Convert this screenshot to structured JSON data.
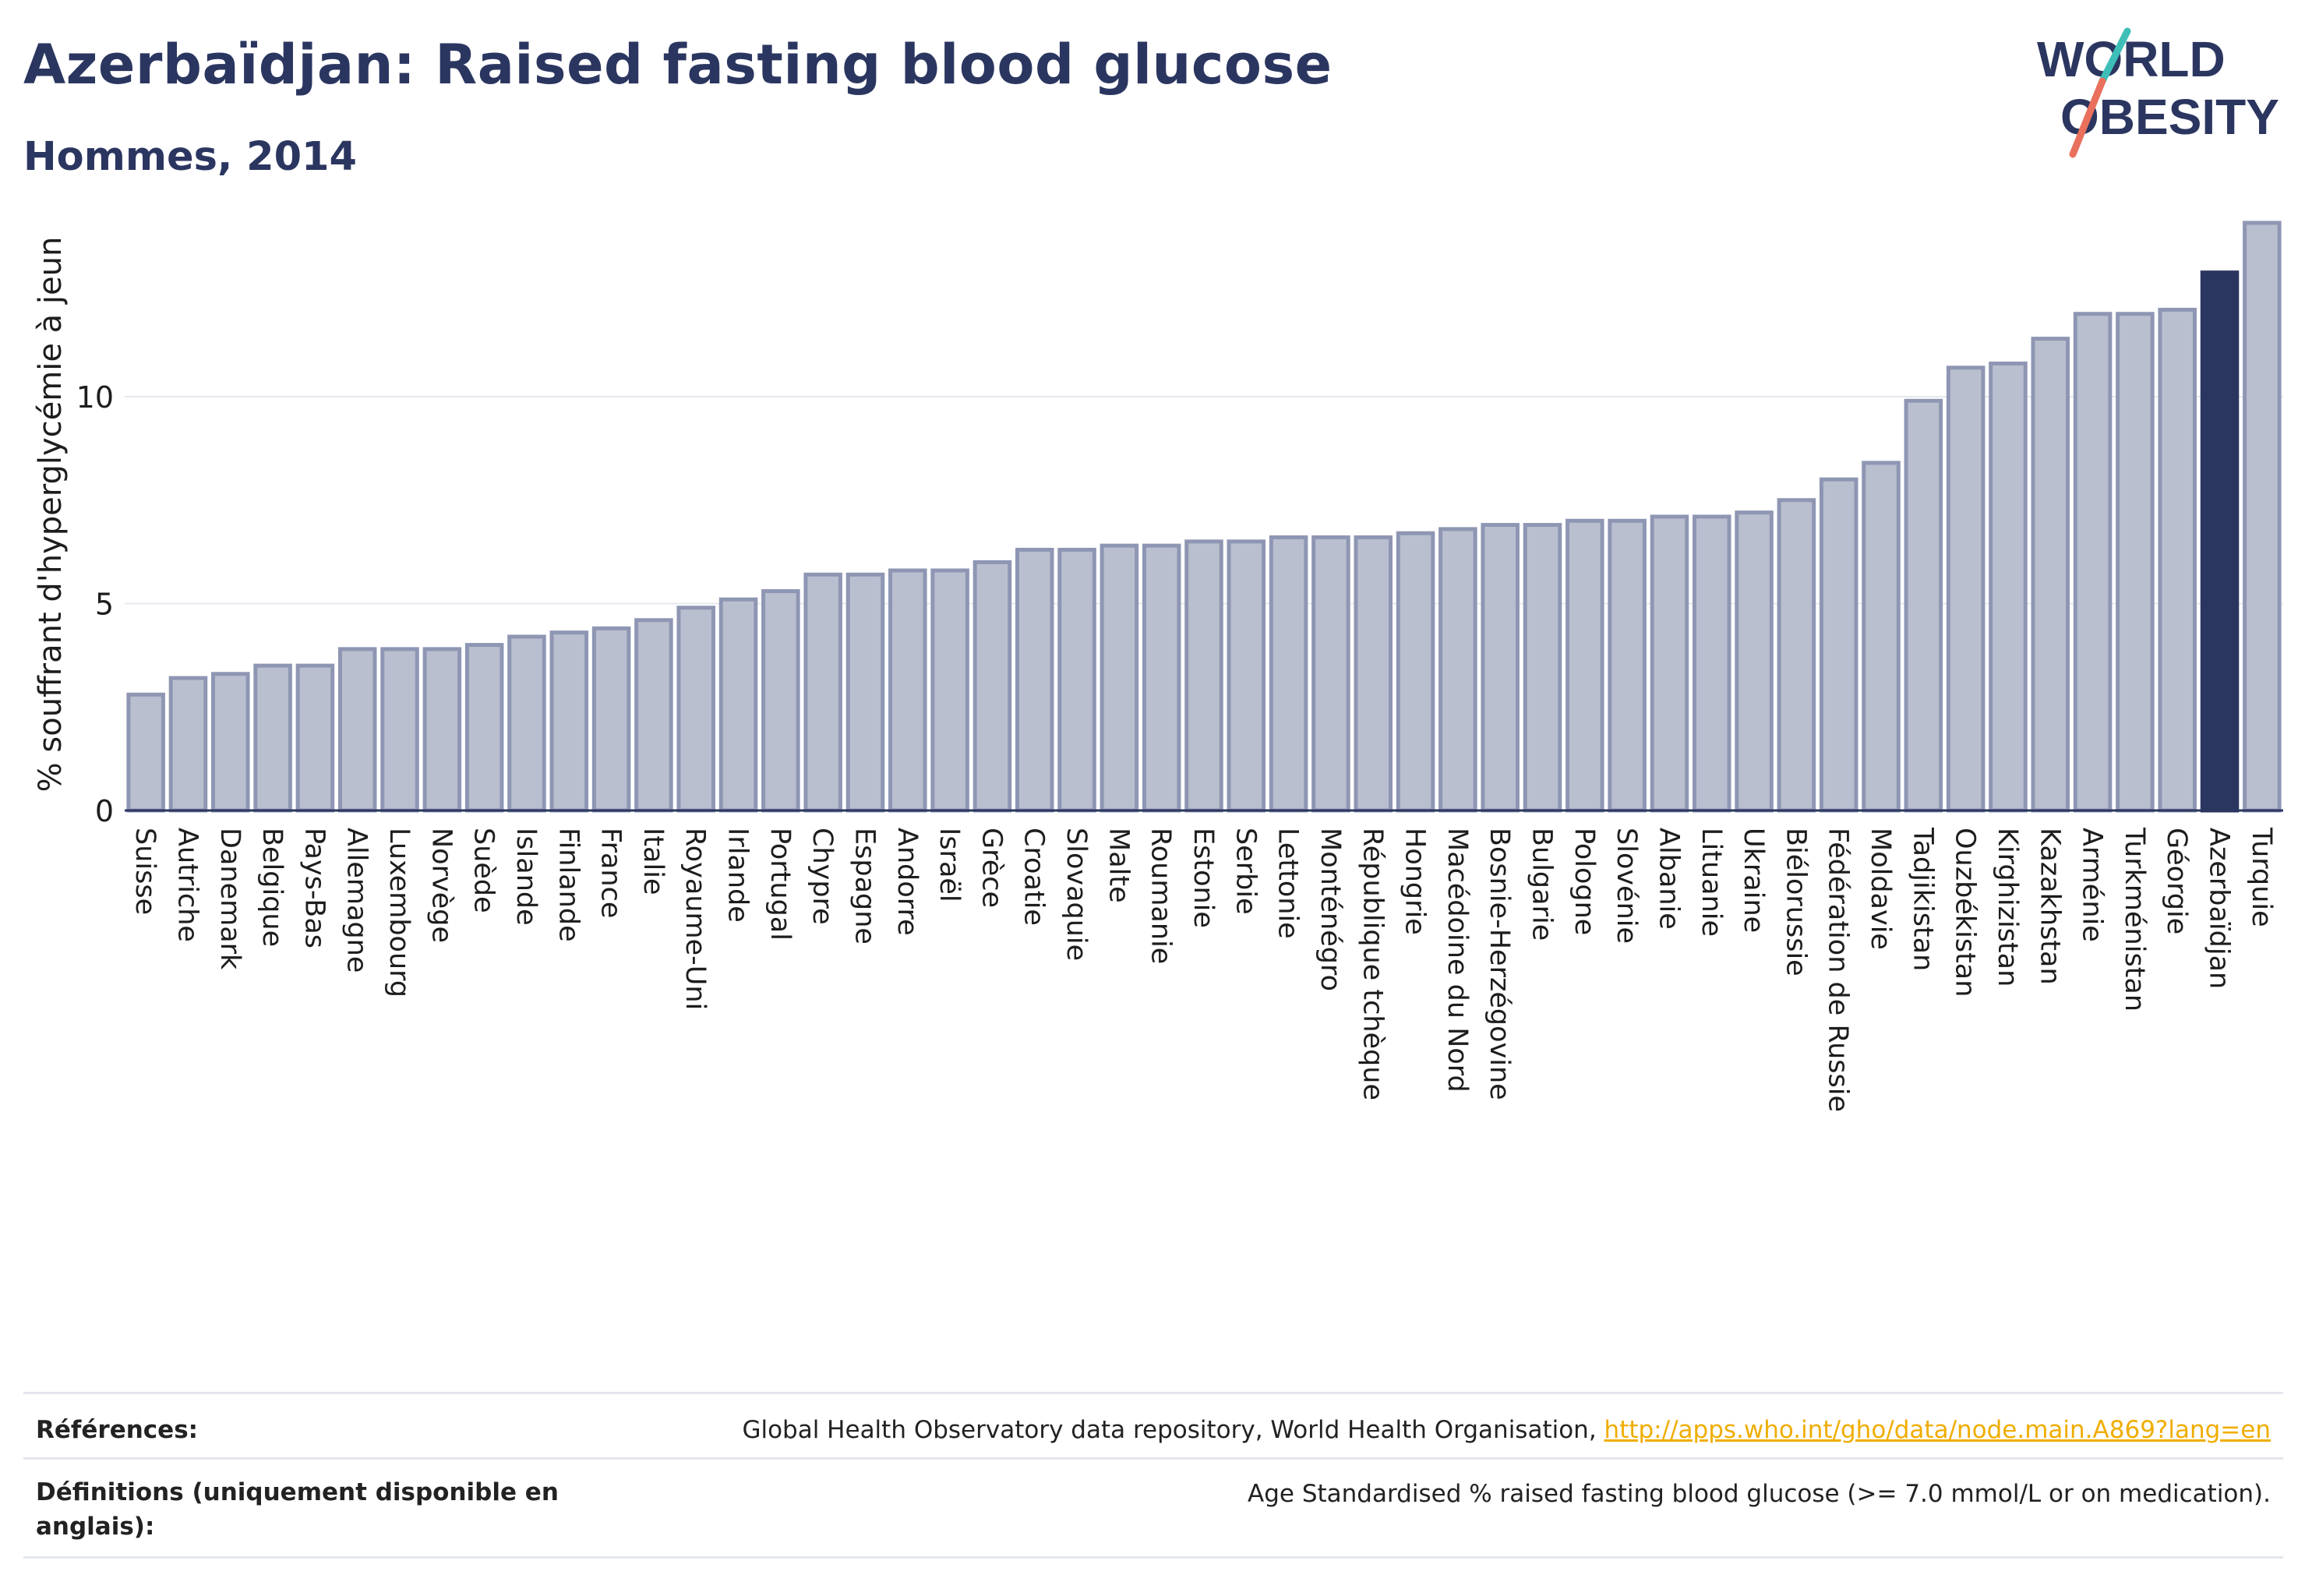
{
  "header": {
    "title": "Azerbaïdjan: Raised fasting blood glucose",
    "subtitle": "Hommes, 2014"
  },
  "logo": {
    "line1": "WORLD",
    "line2": "OBESITY",
    "colors": {
      "text": "#2b3660",
      "slash_teal": "#3dbfb8",
      "slash_coral": "#e8705d"
    }
  },
  "chart_data": {
    "type": "bar",
    "title": "",
    "xlabel": "",
    "ylabel": "% souffrant d'hyperglycémie à jeun",
    "ylim": [
      0,
      14.5
    ],
    "yticks": [
      0,
      5,
      10
    ],
    "grid": true,
    "highlight": "Azerbaïdjan",
    "colors": {
      "bar": "#b9bfcf",
      "bar_border": "#8e96b3",
      "highlight": "#2b3660",
      "grid": "#e6e8ee",
      "axis": "#2b3660"
    },
    "categories": [
      "Suisse",
      "Autriche",
      "Danemark",
      "Belgique",
      "Pays-Bas",
      "Allemagne",
      "Luxembourg",
      "Norvège",
      "Suède",
      "Islande",
      "Finlande",
      "France",
      "Italie",
      "Royaume-Uni",
      "Irlande",
      "Portugal",
      "Chypre",
      "Espagne",
      "Andorre",
      "Israël",
      "Grèce",
      "Croatie",
      "Slovaquie",
      "Malte",
      "Roumanie",
      "Estonie",
      "Serbie",
      "Lettonie",
      "Monténégro",
      "République tchèque",
      "Hongrie",
      "Macédoine du Nord",
      "Bosnie-Herzégovine",
      "Bulgarie",
      "Pologne",
      "Slovénie",
      "Albanie",
      "Lituanie",
      "Ukraine",
      "Biélorussie",
      "Fédération de Russie",
      "Moldavie",
      "Tadjikistan",
      "Ouzbékistan",
      "Kirghizistan",
      "Kazakhstan",
      "Arménie",
      "Turkménistan",
      "Géorgie",
      "Azerbaïdjan",
      "Turquie"
    ],
    "values": [
      2.8,
      3.2,
      3.3,
      3.5,
      3.5,
      3.9,
      3.9,
      3.9,
      4.0,
      4.2,
      4.3,
      4.4,
      4.6,
      4.9,
      5.1,
      5.3,
      5.7,
      5.7,
      5.8,
      5.8,
      6.0,
      6.3,
      6.3,
      6.4,
      6.4,
      6.5,
      6.5,
      6.6,
      6.6,
      6.6,
      6.7,
      6.8,
      6.9,
      6.9,
      7.0,
      7.0,
      7.1,
      7.1,
      7.2,
      7.5,
      8.0,
      8.4,
      9.9,
      10.7,
      10.8,
      11.4,
      12.0,
      12.0,
      12.1,
      13.0,
      14.2
    ]
  },
  "footer": {
    "references_label": "Références:",
    "references_text": "Global Health Observatory data repository, World Health Organisation, ",
    "references_link": "http://apps.who.int/gho/data/node.main.A869?lang=en",
    "definitions_label_line1": "Définitions (uniquement disponible en",
    "definitions_label_line2": "anglais):",
    "definitions_text": "Age Standardised % raised fasting blood glucose (>= 7.0 mmol/L or on medication)."
  }
}
